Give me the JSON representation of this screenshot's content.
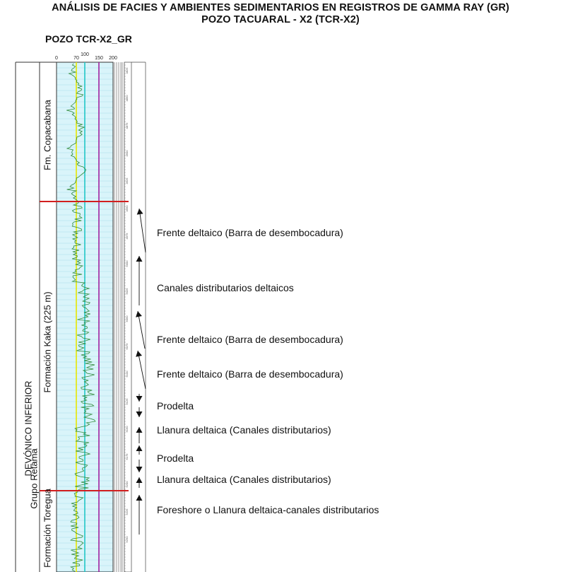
{
  "title": {
    "line1": "ANÁLISIS DE FACIES Y AMBIENTES SEDIMENTARIOS EN REGISTROS DE GAMMA RAY (GR)",
    "line2": "POZO TACUARAL - X2 (TCR-X2)"
  },
  "well_name": "POZO TCR-X2_GR",
  "track": {
    "scale_ticks": [
      "0",
      "70",
      "100",
      "150",
      "200"
    ],
    "cutoff_colors": {
      "70": "#e6e600",
      "100": "#20c6c6",
      "150": "#a020a0"
    },
    "fill_color": "#d9f4fa",
    "boundary_color": "#d11f1f"
  },
  "units": {
    "system": "DEVÓNICO INFERIOR",
    "group": "Grupo Retama",
    "formations": [
      "Fm. Copacabana",
      "Formación Kaka (225 m)",
      "Formación Toregua"
    ]
  },
  "facies": [
    "Frente deltaico (Barra de desembocadura)",
    "Canales distributarios deltaicos",
    "Frente deltaico (Barra de desembocadura)",
    "Frente deltaico (Barra de desembocadura)",
    "Prodelta",
    "Llanura deltaica (Canales distributarios)",
    "Prodelta",
    "Llanura deltaica (Canales distributarios)",
    "Foreshore o Llanura deltaica-canales distributarios"
  ],
  "depth_marks": [
    "4825",
    "4850",
    "4875",
    "4900",
    "4925",
    "4950",
    "4975",
    "5000",
    "5025",
    "5050",
    "5075",
    "5100",
    "5125",
    "5150",
    "5175",
    "5200",
    "5225",
    "5250"
  ]
}
